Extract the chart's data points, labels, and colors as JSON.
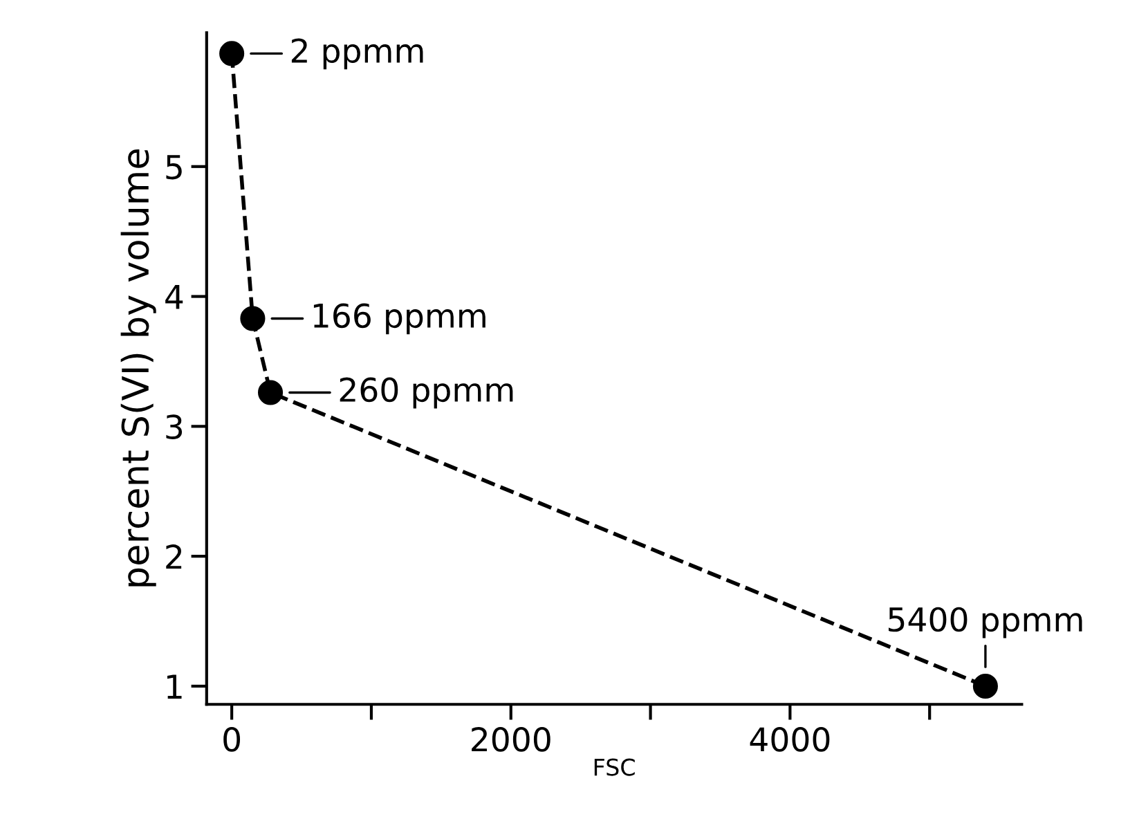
{
  "chart_data": {
    "type": "line",
    "xlabel": "FSC",
    "ylabel": "percent S(VI) by volume",
    "x": [
      0,
      150,
      277,
      5400
    ],
    "values": [
      5.87,
      3.83,
      3.26,
      1.0
    ],
    "color": "#000000",
    "marker": "circle",
    "line_style": "dashed",
    "xlim": [
      -180,
      5660
    ],
    "ylim": [
      0.86,
      6.03
    ],
    "xticks": [
      0,
      {
        "value": 1000,
        "label": null
      },
      2000,
      {
        "value": 3000,
        "label": null
      },
      4000,
      {
        "value": 5000,
        "label": null
      }
    ],
    "yticks": [
      1,
      2,
      3,
      4,
      5
    ],
    "annotations": [
      {
        "text": "2 ppmm",
        "x": 0,
        "y": 5.87
      },
      {
        "text": "166 ppmm",
        "x": 150,
        "y": 3.83
      },
      {
        "text": "260 ppmm",
        "x": 277,
        "y": 3.26
      },
      {
        "text": "5400 ppmm",
        "x": 5400,
        "y": 1.0
      }
    ],
    "grid": false
  }
}
